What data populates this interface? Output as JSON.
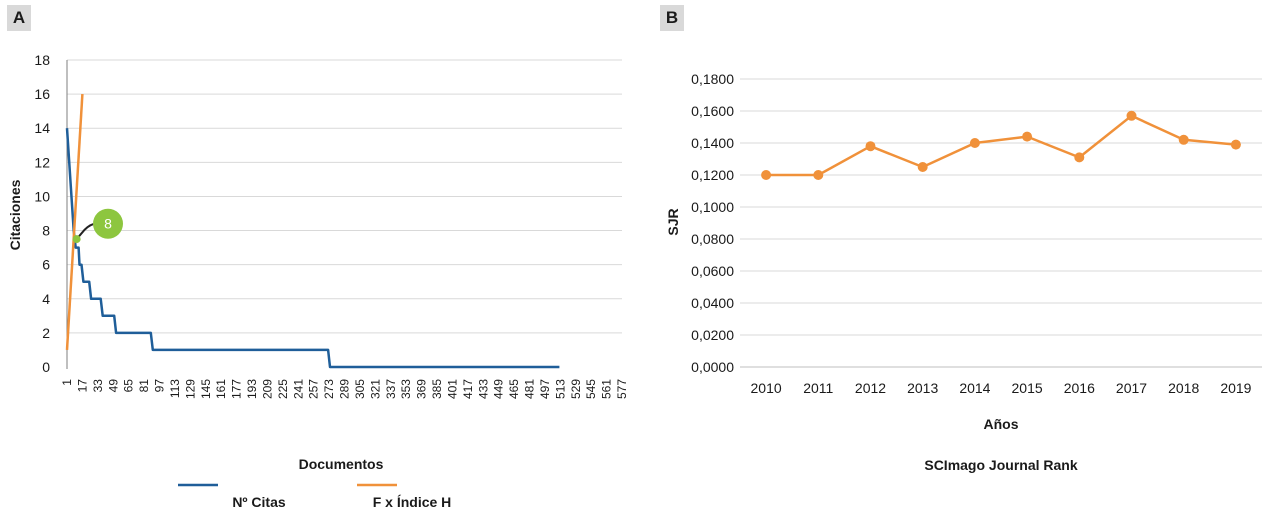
{
  "panel_a": {
    "label": "A",
    "xlabel": "Documentos",
    "ylabel": "Citaciones",
    "h_index_label": "8",
    "legend": [
      {
        "name": "Nº Citas",
        "color": "#1f5e99"
      },
      {
        "name": "F x Índice H",
        "color": "#f0913a"
      }
    ]
  },
  "panel_b": {
    "label": "B",
    "xlabel": "Años",
    "ylabel": "SJR",
    "caption": "SCImago Journal Rank"
  },
  "chart_data": [
    {
      "type": "line",
      "xlabel": "Documentos",
      "ylabel": "Citaciones",
      "ylim": [
        0,
        18
      ],
      "yticks": [
        0,
        2,
        4,
        6,
        8,
        10,
        12,
        14,
        16,
        18
      ],
      "xlim": [
        1,
        577
      ],
      "xticks": [
        1,
        17,
        33,
        49,
        65,
        81,
        97,
        113,
        129,
        145,
        161,
        177,
        193,
        209,
        225,
        241,
        257,
        273,
        289,
        305,
        321,
        337,
        353,
        369,
        385,
        401,
        417,
        433,
        449,
        465,
        481,
        497,
        513,
        529,
        545,
        561,
        577
      ],
      "grid": true,
      "legend_position": "bottom",
      "h_index": 8,
      "series": [
        {
          "name": "Nº Citas",
          "color": "#1f5e99",
          "x": [
            1,
            8,
            10,
            13,
            14,
            16,
            18,
            24,
            26,
            36,
            38,
            50,
            52,
            88,
            90,
            156,
            158,
            272,
            274,
            512
          ],
          "y": [
            14,
            8,
            7,
            7,
            6,
            6,
            5,
            5,
            4,
            4,
            3,
            3,
            2,
            2,
            1,
            1,
            1,
            1,
            0,
            0
          ]
        },
        {
          "name": "F x Índice H",
          "color": "#f0913a",
          "x": [
            1,
            17
          ],
          "y": [
            1,
            16
          ]
        }
      ]
    },
    {
      "type": "line",
      "title": "SCImago Journal Rank",
      "xlabel": "Años",
      "ylabel": "SJR",
      "categories": [
        "2010",
        "2011",
        "2012",
        "2013",
        "2014",
        "2015",
        "2016",
        "2017",
        "2018",
        "2019"
      ],
      "ylim": [
        0,
        0.18
      ],
      "ytick_labels": [
        "0,0000",
        "0,0200",
        "0,0400",
        "0,0600",
        "0,0800",
        "0,1000",
        "0,1200",
        "0,1400",
        "0,1600",
        "0,1800"
      ],
      "grid": true,
      "series": [
        {
          "color": "#f0913a",
          "values": [
            0.12,
            0.12,
            0.138,
            0.125,
            0.14,
            0.144,
            0.131,
            0.157,
            0.142,
            0.139
          ]
        }
      ]
    }
  ]
}
